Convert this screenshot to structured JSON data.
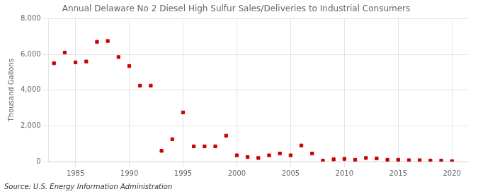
{
  "chart_data": {
    "type": "scatter",
    "title": "Annual Delaware No 2 Diesel High Sulfur Sales/Deliveries to Industrial Consumers",
    "ylabel": "Thousand Gallons",
    "source": "Source: U.S. Energy Information Administration",
    "x": [
      1983,
      1984,
      1985,
      1986,
      1987,
      1988,
      1989,
      1990,
      1991,
      1992,
      1993,
      1994,
      1995,
      1996,
      1997,
      1998,
      1999,
      2000,
      2001,
      2002,
      2003,
      2004,
      2005,
      2006,
      2007,
      2008,
      2009,
      2010,
      2011,
      2012,
      2013,
      2014,
      2015,
      2016,
      2017,
      2018,
      2019,
      2020
    ],
    "values": [
      5500,
      6100,
      5550,
      5600,
      6700,
      6750,
      5850,
      5350,
      4250,
      4250,
      600,
      1250,
      2750,
      850,
      850,
      850,
      1450,
      350,
      250,
      200,
      350,
      450,
      350,
      900,
      450,
      50,
      125,
      150,
      100,
      200,
      175,
      100,
      100,
      75,
      75,
      50,
      50,
      20
    ],
    "color": "#cc0000",
    "marker": "square",
    "xlim": [
      1982.5,
      2021.5
    ],
    "ylim": [
      0,
      8000
    ],
    "xticks": [
      1985,
      1990,
      1995,
      2000,
      2005,
      2010,
      2015,
      2020
    ],
    "yticks": [
      0,
      {
        "value": 2000,
        "label": "2,000"
      },
      {
        "value": 4000,
        "label": "4,000"
      },
      {
        "value": 6000,
        "label": "6,000"
      },
      {
        "value": 8000,
        "label": "8,000"
      }
    ],
    "grid": true
  }
}
